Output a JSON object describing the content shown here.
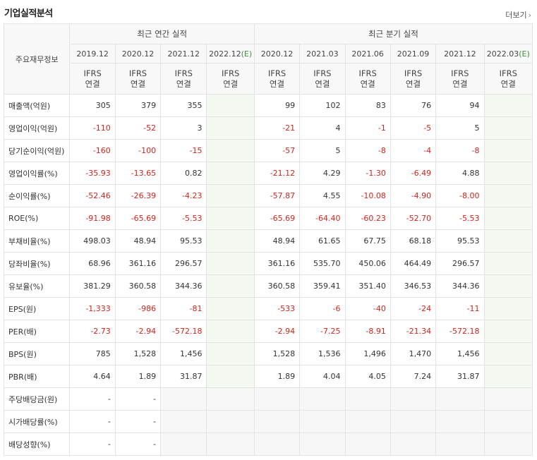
{
  "header": {
    "title": "기업실적분석",
    "more_label": "더보기"
  },
  "table": {
    "corner_label": "주요재무정보",
    "annual_group": "최근 연간 실적",
    "quarter_group": "최근 분기 실적",
    "annual_periods": [
      "2019.12",
      "2020.12",
      "2021.12",
      "2022.12"
    ],
    "quarter_periods": [
      "2020.12",
      "2021.03",
      "2021.06",
      "2021.09",
      "2021.12",
      "2022.03"
    ],
    "estimate_mark": "(E)",
    "ifrs_label": "IFRS",
    "consol_label": "연결",
    "rows": [
      {
        "label": "매출액(억원)",
        "vals": [
          "305",
          "379",
          "355",
          "",
          "99",
          "102",
          "83",
          "76",
          "94",
          ""
        ]
      },
      {
        "label": "영업이익(억원)",
        "vals": [
          "-110",
          "-52",
          "3",
          "",
          "-21",
          "4",
          "-1",
          "-5",
          "5",
          ""
        ]
      },
      {
        "label": "당기순이익(억원)",
        "vals": [
          "-160",
          "-100",
          "-15",
          "",
          "-57",
          "5",
          "-8",
          "-4",
          "-8",
          ""
        ]
      },
      {
        "label": "영업이익률(%)",
        "vals": [
          "-35.93",
          "-13.65",
          "0.82",
          "",
          "-21.12",
          "4.29",
          "-1.30",
          "-6.49",
          "4.88",
          ""
        ]
      },
      {
        "label": "순이익률(%)",
        "vals": [
          "-52.46",
          "-26.39",
          "-4.23",
          "",
          "-57.87",
          "4.55",
          "-10.08",
          "-4.90",
          "-8.00",
          ""
        ]
      },
      {
        "label": "ROE(%)",
        "vals": [
          "-91.98",
          "-65.69",
          "-5.53",
          "",
          "-65.69",
          "-64.40",
          "-60.23",
          "-52.70",
          "-5.53",
          ""
        ]
      },
      {
        "label": "부채비율(%)",
        "vals": [
          "498.03",
          "48.94",
          "95.53",
          "",
          "48.94",
          "61.65",
          "67.75",
          "68.18",
          "95.53",
          ""
        ]
      },
      {
        "label": "당좌비율(%)",
        "vals": [
          "68.96",
          "361.16",
          "296.57",
          "",
          "361.16",
          "535.70",
          "450.06",
          "464.49",
          "296.57",
          ""
        ]
      },
      {
        "label": "유보율(%)",
        "vals": [
          "381.29",
          "360.58",
          "344.36",
          "",
          "360.58",
          "359.41",
          "351.40",
          "346.53",
          "344.36",
          ""
        ]
      },
      {
        "label": "EPS(원)",
        "vals": [
          "-1,333",
          "-986",
          "-81",
          "",
          "-533",
          "-6",
          "-40",
          "-24",
          "-11",
          ""
        ]
      },
      {
        "label": "PER(배)",
        "vals": [
          "-2.73",
          "-2.94",
          "-572.18",
          "",
          "-2.94",
          "-7.25",
          "-8.91",
          "-21.34",
          "-572.18",
          ""
        ]
      },
      {
        "label": "BPS(원)",
        "vals": [
          "785",
          "1,528",
          "1,456",
          "",
          "1,528",
          "1,536",
          "1,496",
          "1,470",
          "1,456",
          ""
        ]
      },
      {
        "label": "PBR(배)",
        "vals": [
          "4.64",
          "1.89",
          "31.87",
          "",
          "1.89",
          "4.04",
          "4.05",
          "7.24",
          "31.87",
          ""
        ]
      },
      {
        "label": "주당배당금(원)",
        "vals": [
          "-",
          "-",
          "",
          "",
          "",
          "",
          "",
          "",
          "",
          ""
        ]
      },
      {
        "label": "시가배당률(%)",
        "vals": [
          "-",
          "-",
          "",
          "",
          "",
          "",
          "",
          "",
          "",
          ""
        ]
      },
      {
        "label": "배당성향(%)",
        "vals": [
          "-",
          "-",
          "",
          "",
          "",
          "",
          "",
          "",
          "",
          ""
        ]
      }
    ]
  },
  "colors": {
    "negative": "#d4241b",
    "ifrs": "#e85a12",
    "estimate_bg": "#f3f8f1"
  }
}
